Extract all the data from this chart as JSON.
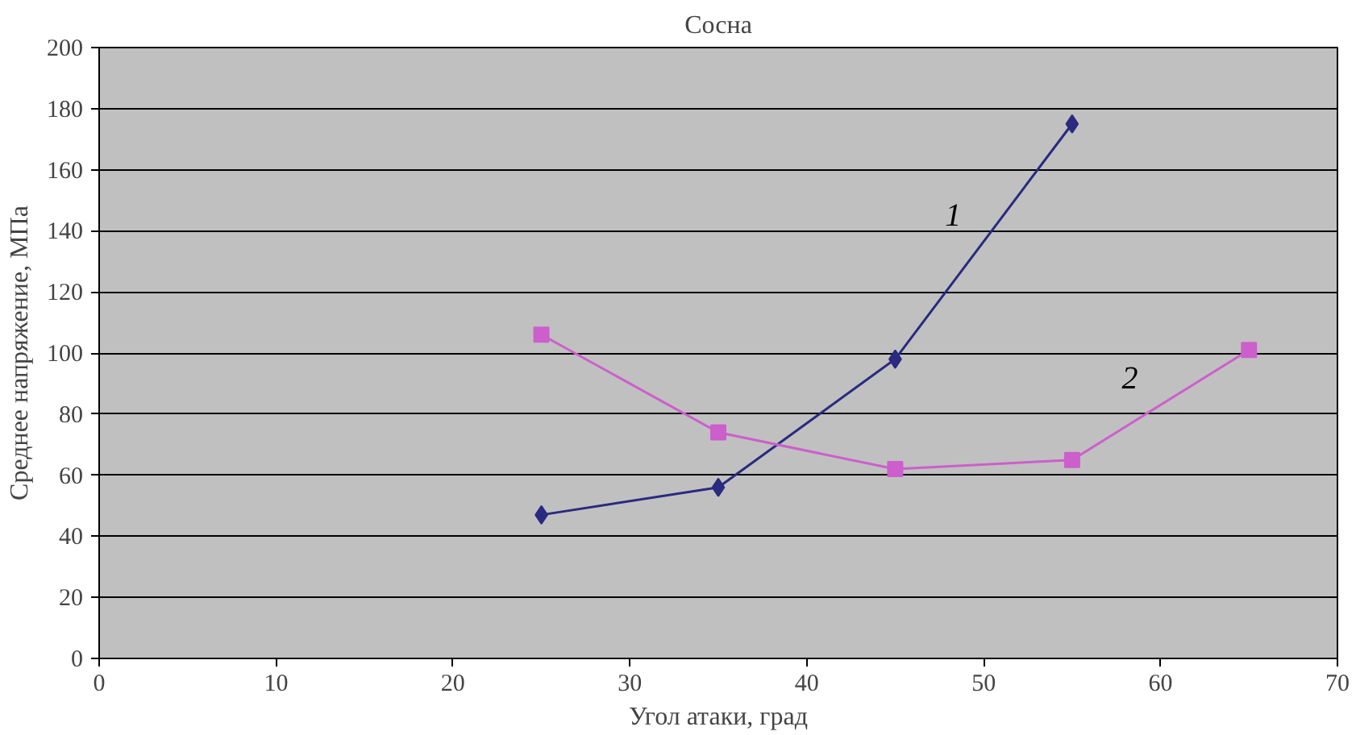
{
  "chart_data": {
    "type": "line",
    "title": "Сосна",
    "xlabel": "Угол атаки, град",
    "ylabel": "Среднее напряжение, МПа",
    "xlim": [
      0,
      70
    ],
    "xticks": [
      0,
      10,
      20,
      30,
      40,
      50,
      60,
      70
    ],
    "ylim": [
      0,
      200
    ],
    "yticks": [
      0,
      20,
      40,
      60,
      80,
      100,
      120,
      140,
      160,
      180,
      200
    ],
    "grid": "y",
    "series": [
      {
        "name": "1",
        "color": "#2a2a80",
        "marker": "diamond",
        "x": [
          25,
          35,
          45,
          55
        ],
        "values": [
          47,
          56,
          98,
          175
        ]
      },
      {
        "name": "2",
        "color": "#cc5fcc",
        "marker": "square",
        "x": [
          25,
          35,
          45,
          55,
          65
        ],
        "values": [
          106,
          74,
          62,
          65,
          101
        ]
      }
    ]
  }
}
